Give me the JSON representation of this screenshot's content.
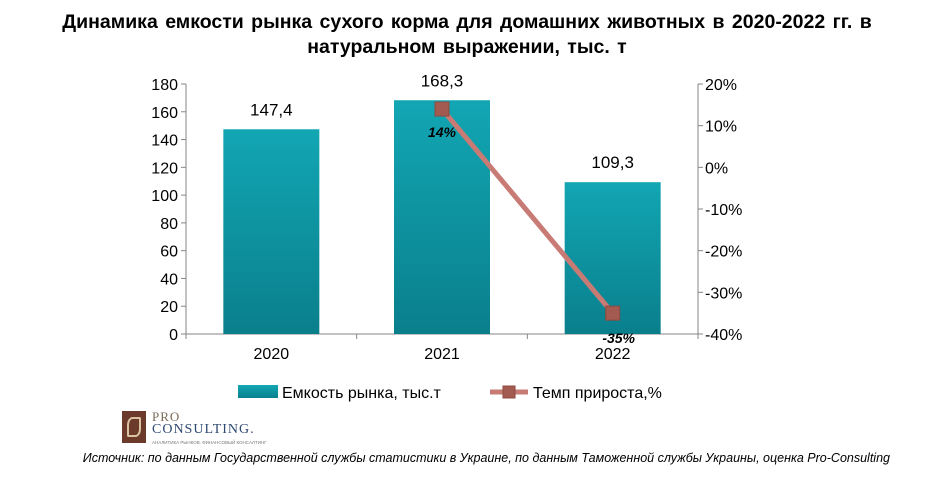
{
  "chart_data": {
    "type": "bar+line",
    "title": "Динамика  емкости  рынка  сухого  корма  для  домашних  животных  в  2020-2022  гг.  в  натуральном  выражении,  тыс.  т",
    "categories": [
      "2020",
      "2021",
      "2022"
    ],
    "series": [
      {
        "name": "Емкость рынка, тыс.т",
        "type": "bar",
        "axis": "left",
        "values": [
          147.4,
          168.3,
          109.3
        ],
        "labels": [
          "147,4",
          "168,3",
          "109,3"
        ],
        "color": "#0e96a4"
      },
      {
        "name": "Темп прироста,%",
        "type": "line",
        "axis": "right",
        "x": [
          "2021",
          "2022"
        ],
        "values": [
          14,
          -35
        ],
        "labels": [
          "14%",
          "-35%"
        ],
        "color": "#c77b74",
        "marker_color": "#a35a50"
      }
    ],
    "left_axis": {
      "ylim": [
        0,
        180
      ],
      "ticks": [
        "0",
        "20",
        "40",
        "60",
        "80",
        "100",
        "120",
        "140",
        "160",
        "180"
      ]
    },
    "right_axis": {
      "ylim": [
        -40,
        20
      ],
      "ticks": [
        "-40%",
        "-30%",
        "-20%",
        "-10%",
        "0%",
        "10%",
        "20%"
      ]
    },
    "legend_position": "bottom",
    "grid": false
  },
  "logo": {
    "line1": "PRO",
    "line2": "CONSULTING.",
    "tagline": "АНАЛИТИКА РЫНКОВ. ФИНАНСОВЫЙ КОНСАЛТИНГ"
  },
  "source": "Источник: по данным Государственной службы статистики в Украине, по данным Таможенной службы Украины, оценка Pro-Consulting"
}
